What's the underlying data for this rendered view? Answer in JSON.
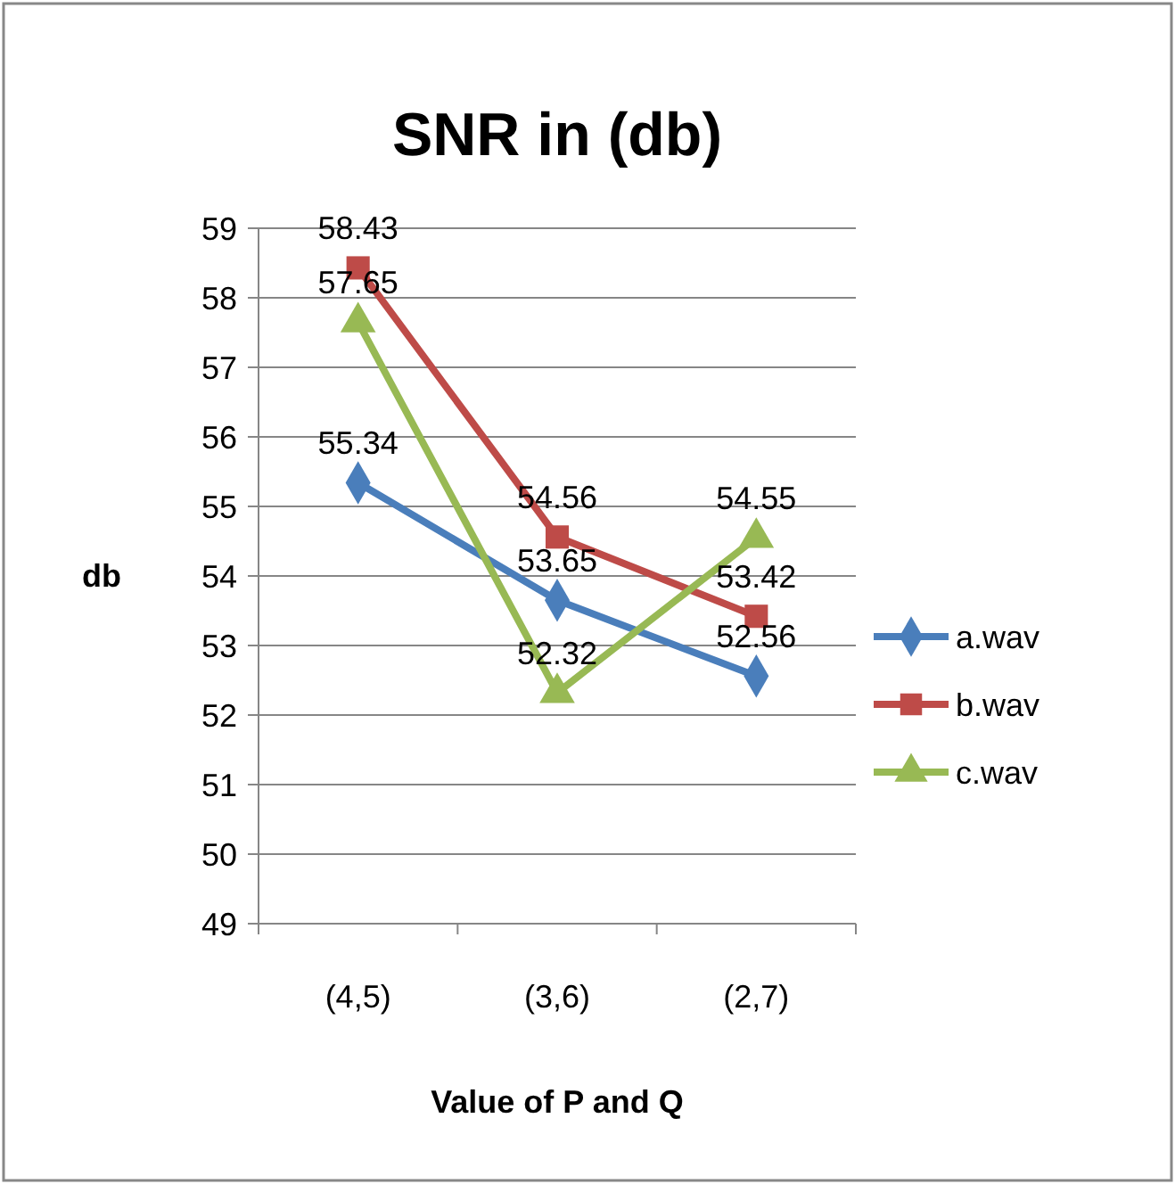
{
  "chart_data": {
    "type": "line",
    "title": "SNR in (db)",
    "xlabel": "Value of P and Q",
    "ylabel": "db",
    "categories": [
      "(4,5)",
      "(3,6)",
      "(2,7)"
    ],
    "series": [
      {
        "name": "a.wav",
        "color": "#4a7ebb",
        "marker": "diamond",
        "values": [
          55.34,
          53.65,
          52.56
        ]
      },
      {
        "name": "b.wav",
        "color": "#be4b48",
        "marker": "square",
        "values": [
          58.43,
          54.56,
          53.42
        ]
      },
      {
        "name": "c.wav",
        "color": "#98b954",
        "marker": "triangle",
        "values": [
          57.65,
          52.32,
          54.55
        ]
      }
    ],
    "ylim": [
      49,
      59
    ],
    "yticks": [
      49,
      50,
      51,
      52,
      53,
      54,
      55,
      56,
      57,
      58,
      59
    ],
    "grid": "y",
    "legend": "right",
    "data_labels": true,
    "line_style": "solid"
  }
}
